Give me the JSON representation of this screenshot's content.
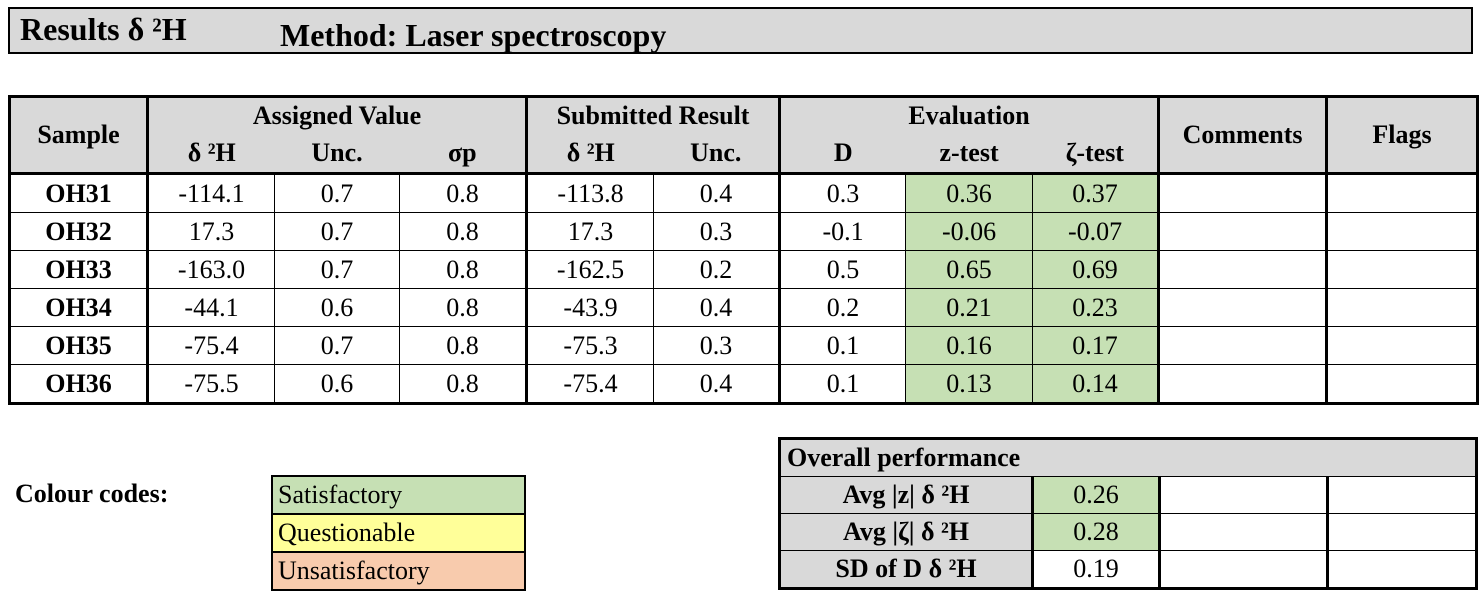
{
  "title": {
    "results": "Results δ ²H",
    "method": "Method: Laser spectroscopy"
  },
  "header": {
    "sample": "Sample",
    "assigned_value": "Assigned Value",
    "submitted_result": "Submitted Result",
    "evaluation": "Evaluation",
    "comments": "Comments",
    "flags": "Flags",
    "sub": {
      "d2h": "δ ²H",
      "unc": "Unc.",
      "sigma": "σp",
      "d2h2": "δ ²H",
      "unc2": "Unc.",
      "D": "D",
      "z": "z-test",
      "zeta": "ζ-test"
    }
  },
  "rows": [
    {
      "sample": "OH31",
      "av": "-114.1",
      "av_unc": "0.7",
      "sigma": "0.8",
      "sr": "-113.8",
      "sr_unc": "0.4",
      "D": "0.3",
      "z": "0.36",
      "zeta": "0.37",
      "comments": "",
      "flags": ""
    },
    {
      "sample": "OH32",
      "av": "17.3",
      "av_unc": "0.7",
      "sigma": "0.8",
      "sr": "17.3",
      "sr_unc": "0.3",
      "D": "-0.1",
      "z": "-0.06",
      "zeta": "-0.07",
      "comments": "",
      "flags": ""
    },
    {
      "sample": "OH33",
      "av": "-163.0",
      "av_unc": "0.7",
      "sigma": "0.8",
      "sr": "-162.5",
      "sr_unc": "0.2",
      "D": "0.5",
      "z": "0.65",
      "zeta": "0.69",
      "comments": "",
      "flags": ""
    },
    {
      "sample": "OH34",
      "av": "-44.1",
      "av_unc": "0.6",
      "sigma": "0.8",
      "sr": "-43.9",
      "sr_unc": "0.4",
      "D": "0.2",
      "z": "0.21",
      "zeta": "0.23",
      "comments": "",
      "flags": ""
    },
    {
      "sample": "OH35",
      "av": "-75.4",
      "av_unc": "0.7",
      "sigma": "0.8",
      "sr": "-75.3",
      "sr_unc": "0.3",
      "D": "0.1",
      "z": "0.16",
      "zeta": "0.17",
      "comments": "",
      "flags": ""
    },
    {
      "sample": "OH36",
      "av": "-75.5",
      "av_unc": "0.6",
      "sigma": "0.8",
      "sr": "-75.4",
      "sr_unc": "0.4",
      "D": "0.1",
      "z": "0.13",
      "zeta": "0.14",
      "comments": "",
      "flags": ""
    }
  ],
  "colour_codes": {
    "label": "Colour codes:",
    "satisfactory": "Satisfactory",
    "questionable": "Questionable",
    "unsatisfactory": "Unsatisfactory"
  },
  "colors": {
    "satisfactory": "#c6e0b4",
    "questionable": "#ffff99",
    "unsatisfactory": "#f8cbad",
    "header": "#d9d9d9"
  },
  "overall": {
    "title": "Overall performance",
    "rows": [
      {
        "label": "Avg |z| δ ²H",
        "value": "0.26"
      },
      {
        "label": "Avg |ζ| δ ²H",
        "value": "0.28"
      },
      {
        "label": "SD of D δ ²H",
        "value": "0.19"
      }
    ]
  }
}
